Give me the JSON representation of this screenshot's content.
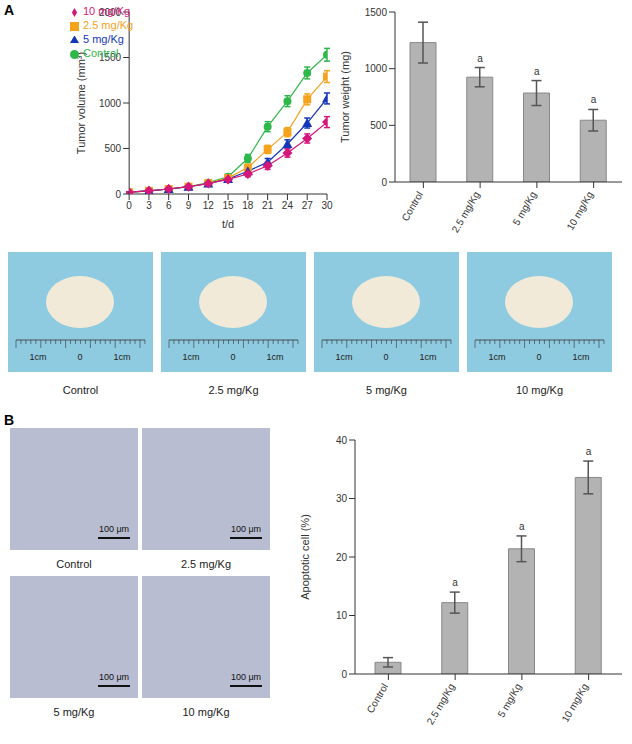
{
  "panel_labels": [
    "A",
    "B"
  ],
  "chart_data": [
    {
      "type": "line",
      "x_label": "t/d",
      "y_label": "Tumor volume (mm³)",
      "x": [
        0,
        3,
        6,
        9,
        12,
        15,
        18,
        21,
        24,
        27,
        30
      ],
      "xlim": [
        0,
        30
      ],
      "xticks": [
        0,
        3,
        6,
        9,
        12,
        15,
        18,
        21,
        24,
        27,
        30
      ],
      "ylim": [
        0,
        2000
      ],
      "yticks": [
        0,
        500,
        1000,
        1500,
        2000
      ],
      "legend": "upper left",
      "series": [
        {
          "name": "Control",
          "color": "#2fb84a",
          "marker": "circle",
          "values": [
            20,
            35,
            55,
            80,
            125,
            190,
            390,
            740,
            1020,
            1330,
            1530
          ],
          "errors": [
            5,
            8,
            10,
            12,
            15,
            25,
            45,
            55,
            60,
            65,
            70
          ]
        },
        {
          "name": "2.5 mg/Kg",
          "color": "#f5a21c",
          "marker": "square",
          "values": [
            20,
            35,
            55,
            80,
            120,
            175,
            290,
            490,
            680,
            1040,
            1290
          ],
          "errors": [
            5,
            8,
            10,
            12,
            15,
            20,
            35,
            45,
            50,
            60,
            65
          ]
        },
        {
          "name": "5 mg/Kg",
          "color": "#1636b8",
          "marker": "triangle",
          "values": [
            20,
            35,
            55,
            80,
            115,
            165,
            250,
            350,
            550,
            780,
            1050
          ],
          "errors": [
            5,
            8,
            10,
            12,
            15,
            20,
            30,
            40,
            45,
            55,
            60
          ]
        },
        {
          "name": "10 mg/Kg",
          "color": "#d6177a",
          "marker": "diamond",
          "values": [
            20,
            35,
            55,
            80,
            115,
            160,
            220,
            310,
            450,
            610,
            790
          ],
          "errors": [
            5,
            8,
            10,
            12,
            15,
            20,
            30,
            40,
            45,
            50,
            60
          ]
        }
      ]
    },
    {
      "type": "bar",
      "y_label": "Tumor weight (mg)",
      "categories": [
        "Control",
        "2.5 mg/Kg",
        "5 mg/Kg",
        "10 mg/Kg"
      ],
      "values": [
        1230,
        925,
        785,
        545
      ],
      "errors": [
        180,
        85,
        110,
        95
      ],
      "color": "#b3b3b3",
      "ylim": [
        0,
        1500
      ],
      "yticks": [
        0,
        500,
        1000,
        1500
      ],
      "annotations": [
        {
          "category": "2.5 mg/Kg",
          "text": "a"
        },
        {
          "category": "5 mg/Kg",
          "text": "a"
        },
        {
          "category": "10 mg/Kg",
          "text": "a"
        }
      ]
    },
    {
      "type": "bar",
      "y_label": "Apoptotic cell (%)",
      "categories": [
        "Control",
        "2.5 mg/Kg",
        "5 mg/Kg",
        "10 mg/Kg"
      ],
      "values": [
        2,
        12.2,
        21.4,
        33.6
      ],
      "errors": [
        0.8,
        1.8,
        2.2,
        2.8
      ],
      "color": "#b3b3b3",
      "ylim": [
        0,
        40
      ],
      "yticks": [
        0,
        10,
        20,
        30,
        40
      ],
      "annotations": [
        {
          "category": "2.5 mg/Kg",
          "text": "a"
        },
        {
          "category": "5 mg/Kg",
          "text": "a"
        },
        {
          "category": "10 mg/Kg",
          "text": "a"
        }
      ]
    }
  ],
  "photos": {
    "labels": [
      "Control",
      "2.5 mg/Kg",
      "5 mg/Kg",
      "10 mg/Kg"
    ],
    "ruler_labels": [
      "1cm",
      "0",
      "1cm"
    ]
  },
  "micrographs": {
    "labels": [
      "Control",
      "2.5 mg/Kg",
      "5 mg/Kg",
      "10 mg/Kg"
    ],
    "scale_bar": "100 μm"
  }
}
